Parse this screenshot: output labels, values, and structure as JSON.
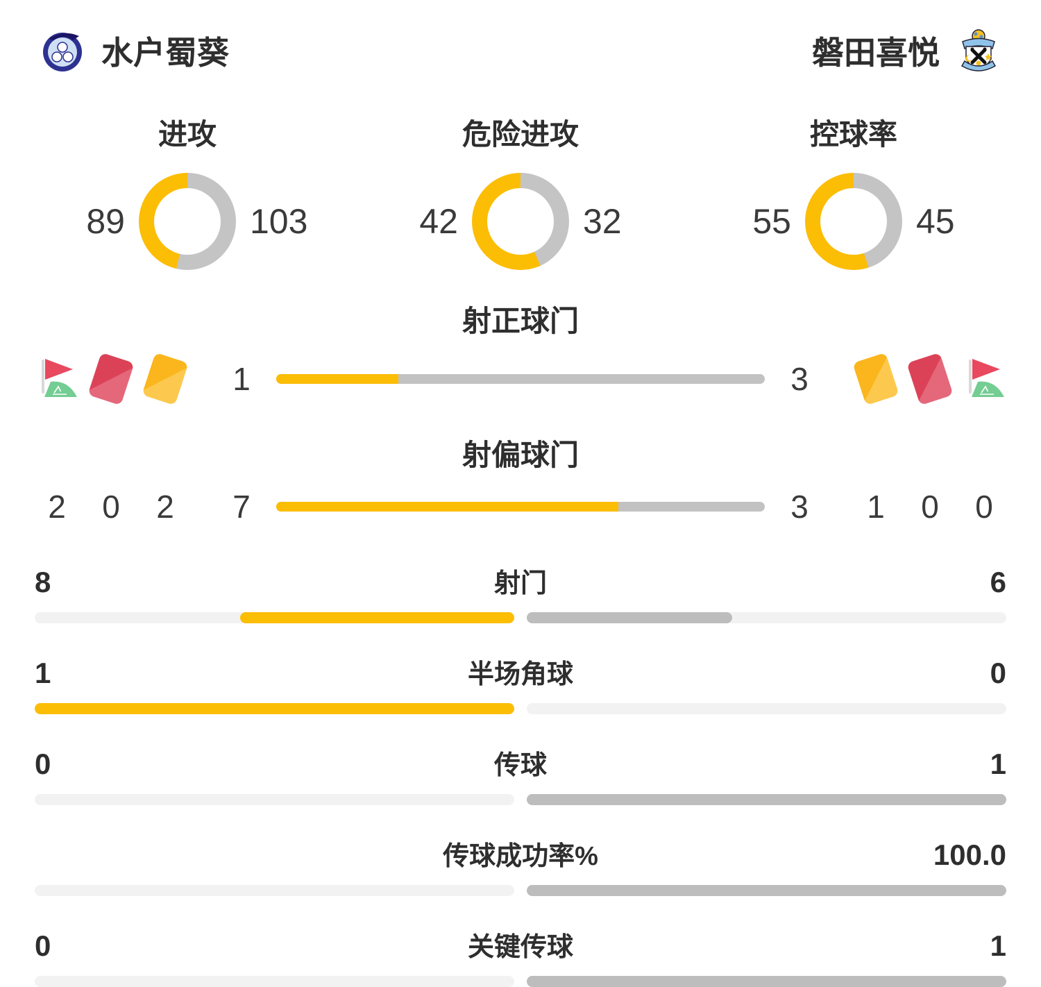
{
  "header": {
    "home_team": "水户蜀葵",
    "away_team": "磐田喜悦",
    "home_logo": "mito-hollyhock-crest",
    "away_logo": "jubilo-iwata-crest"
  },
  "colors": {
    "accent": "#fcbd05",
    "ring_gray": "#c4c4c4",
    "mid_gray": "#c2c2c2",
    "away_gray": "#bdbdbd",
    "track": "#f2f2f2"
  },
  "icons": {
    "home_order": [
      "corner-flag-icon",
      "red-card-icon",
      "yellow-card-icon"
    ],
    "away_order": [
      "yellow-card-icon",
      "red-card-icon",
      "corner-flag-icon"
    ]
  },
  "chart_data": {
    "type": "table",
    "teams": [
      "水户蜀葵",
      "磐田喜悦"
    ],
    "legend_position": "none",
    "donuts": [
      {
        "type": "pie",
        "label": "进攻",
        "home": 89,
        "away": 103
      },
      {
        "type": "pie",
        "label": "危险进攻",
        "home": 42,
        "away": 32
      },
      {
        "type": "pie",
        "label": "控球率",
        "home": 55,
        "away": 45
      }
    ],
    "shot_bars": [
      {
        "type": "bar",
        "label": "射正球门",
        "home": 1,
        "away": 3
      },
      {
        "type": "bar",
        "label": "射偏球门",
        "home": 7,
        "away": 3
      }
    ],
    "cards_corners": {
      "home": {
        "corners": 2,
        "red_cards": 0,
        "yellow_cards": 2
      },
      "away": {
        "yellow_cards": 1,
        "red_cards": 0,
        "corners": 0
      }
    },
    "stat_bars": [
      {
        "type": "bar",
        "label": "射门",
        "home": "8",
        "away": "6"
      },
      {
        "type": "bar",
        "label": "半场角球",
        "home": "1",
        "away": "0"
      },
      {
        "type": "bar",
        "label": "传球",
        "home": "0",
        "away": "1"
      },
      {
        "type": "bar",
        "label": "传球成功率%",
        "home": "",
        "away": "100.0"
      },
      {
        "type": "bar",
        "label": "关键传球",
        "home": "0",
        "away": "1"
      }
    ]
  }
}
